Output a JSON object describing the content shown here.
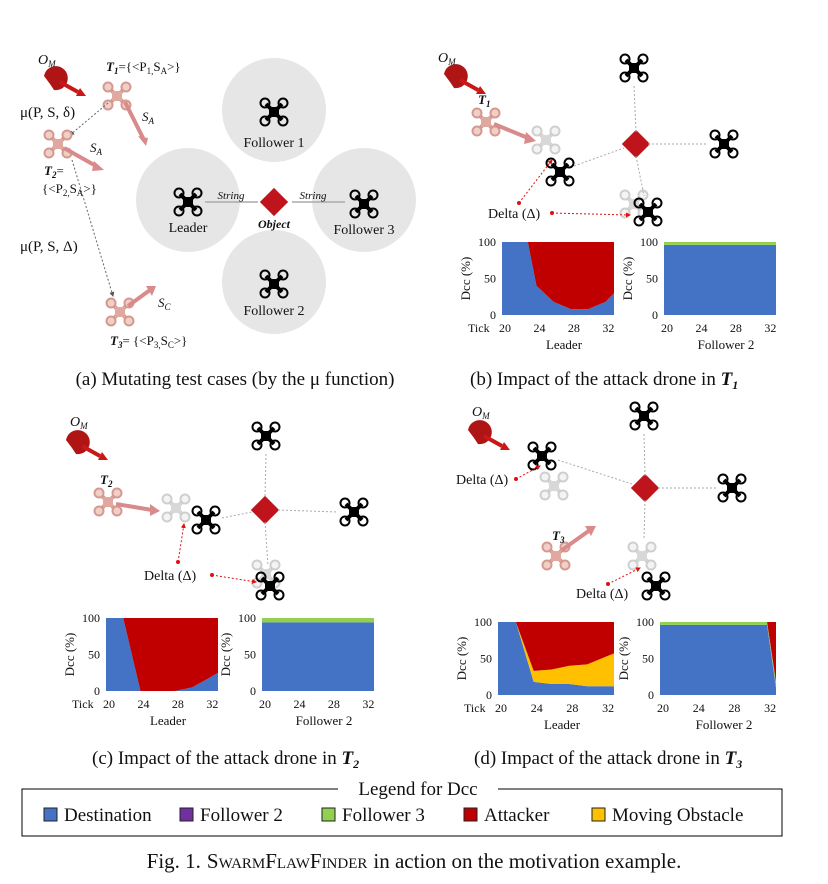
{
  "panel_a": {
    "om": "O",
    "om_sub": "M",
    "t1_label": "T",
    "t1_sub": "1",
    "t1_eq": "={<P",
    "t1_eq_sub": "1,",
    "t1_eq_tail": "S",
    "t1_eq_tail_sub": "A",
    "t1_eq_end": ">}",
    "sa_top": "S",
    "sa_top_sub": "A",
    "sa_mid": "S",
    "sa_mid_sub": "A",
    "mu_small": "μ(P, S, δ)",
    "t2_label": "T",
    "t2_sub": "2",
    "t2_eq": "=",
    "t2_set": "{<P",
    "t2_set_sub": "2,",
    "t2_set_tail": "S",
    "t2_set_tail_sub": "A",
    "t2_set_end": ">}",
    "mu_big": "μ(P, S, Δ)",
    "sc": "S",
    "sc_sub": "C",
    "t3_label": "T",
    "t3_sub": "3",
    "t3_eq": "= {<P",
    "t3_eq_sub": "3,",
    "t3_eq_tail": "S",
    "t3_eq_tail_sub": "C",
    "t3_eq_end": ">}",
    "follower1": "Follower 1",
    "follower2": "Follower 2",
    "follower3": "Follower 3",
    "leader": "Leader",
    "object": "Object",
    "string_left": "String",
    "string_right": "String",
    "caption": "(a) Mutating test cases (by the μ function)"
  },
  "panel_b": {
    "om": "O",
    "om_sub": "M",
    "t_label": "T",
    "t_sub": "1",
    "delta": "Delta (Δ)",
    "caption_pre": "(b) Impact of the attack drone in ",
    "caption_t": "T",
    "caption_sub": "1"
  },
  "panel_c": {
    "om": "O",
    "om_sub": "M",
    "t_label": "T",
    "t_sub": "2",
    "delta": "Delta (Δ)",
    "caption_pre": "(c) Impact of the attack drone in ",
    "caption_t": "T",
    "caption_sub": "2"
  },
  "panel_d": {
    "om": "O",
    "om_sub": "M",
    "t_label": "T",
    "t_sub": "3",
    "delta1": "Delta (Δ)",
    "delta2": "Delta (Δ)",
    "caption_pre": "(d) Impact of the attack drone in ",
    "caption_t": "T",
    "caption_sub": "3"
  },
  "axes": {
    "ylabel": "Dcc (%)",
    "yticks": [
      "100",
      "50",
      "0"
    ],
    "xtick_label": "Tick",
    "xticks": [
      "20",
      "24",
      "28",
      "32"
    ],
    "leader": "Leader",
    "follower2": "Follower 2"
  },
  "legend": {
    "title": "Legend for Dcc",
    "items": [
      {
        "label": "Destination",
        "color": "#4472C4"
      },
      {
        "label": "Follower 2",
        "color": "#7030A0"
      },
      {
        "label": "Follower 3",
        "color": "#92D050"
      },
      {
        "label": "Attacker",
        "color": "#C00000"
      },
      {
        "label": "Moving Obstacle",
        "color": "#FFC000"
      }
    ]
  },
  "figure_caption": {
    "prefix": "Fig. 1.",
    "name": "SwarmFlawFinder",
    "suffix": "in action on the motivation example."
  },
  "chart_data": [
    {
      "type": "area",
      "panel": "b-leader",
      "x": [
        20,
        22,
        23,
        24,
        26,
        28,
        30,
        32,
        33
      ],
      "series": [
        {
          "name": "Destination",
          "values": [
            100,
            100,
            100,
            40,
            18,
            8,
            8,
            18,
            30
          ]
        },
        {
          "name": "Attacker",
          "values": [
            0,
            0,
            0,
            60,
            82,
            92,
            92,
            82,
            70
          ]
        }
      ]
    },
    {
      "type": "area",
      "panel": "b-follower2",
      "x": [
        20,
        33
      ],
      "series": [
        {
          "name": "Destination",
          "values": [
            96,
            96
          ]
        },
        {
          "name": "Follower 3",
          "values": [
            4,
            4
          ]
        }
      ]
    },
    {
      "type": "area",
      "panel": "c-leader",
      "x": [
        20,
        22,
        24,
        26,
        28,
        30,
        32,
        33
      ],
      "series": [
        {
          "name": "Destination",
          "values": [
            100,
            100,
            0,
            0,
            0,
            5,
            18,
            25
          ]
        },
        {
          "name": "Attacker",
          "values": [
            0,
            0,
            100,
            100,
            100,
            95,
            82,
            75
          ]
        }
      ]
    },
    {
      "type": "area",
      "panel": "c-follower2",
      "x": [
        20,
        33
      ],
      "series": [
        {
          "name": "Destination",
          "values": [
            94,
            94
          ]
        },
        {
          "name": "Follower 3",
          "values": [
            6,
            6
          ]
        }
      ]
    },
    {
      "type": "area",
      "panel": "d-leader",
      "x": [
        20,
        22,
        24,
        26,
        28,
        30,
        32,
        33
      ],
      "series": [
        {
          "name": "Destination",
          "values": [
            100,
            100,
            18,
            15,
            15,
            12,
            12,
            12
          ]
        },
        {
          "name": "Moving Obstacle",
          "values": [
            0,
            0,
            15,
            20,
            25,
            30,
            40,
            45
          ]
        },
        {
          "name": "Attacker",
          "values": [
            0,
            0,
            67,
            65,
            60,
            58,
            48,
            43
          ]
        }
      ]
    },
    {
      "type": "area",
      "panel": "d-follower2",
      "x": [
        20,
        32,
        33
      ],
      "series": [
        {
          "name": "Destination",
          "values": [
            96,
            96,
            10
          ]
        },
        {
          "name": "Follower 3",
          "values": [
            4,
            4,
            8
          ]
        },
        {
          "name": "Attacker",
          "values": [
            0,
            0,
            82
          ]
        }
      ]
    }
  ]
}
